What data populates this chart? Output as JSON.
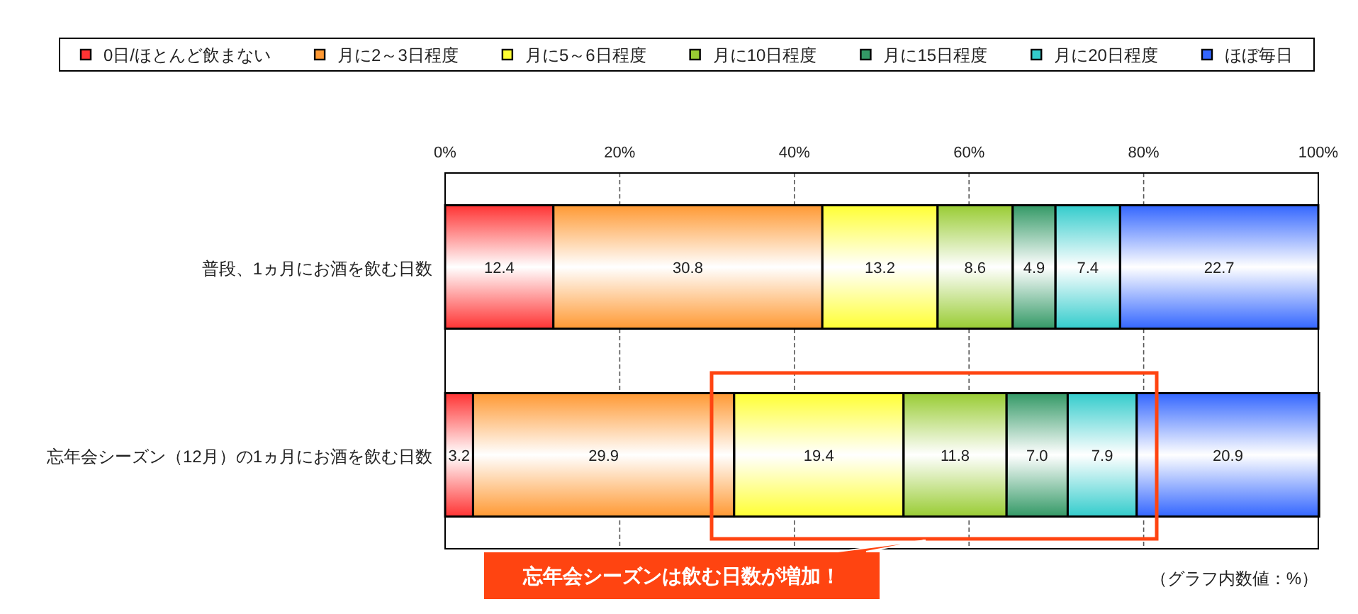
{
  "chart_data": {
    "type": "bar",
    "orientation": "horizontal",
    "stacked": true,
    "categories": [
      "普段、1ヵ月にお酒を飲む日数",
      "忘年会シーズン（12月）の1ヵ月にお酒を飲む日数"
    ],
    "series": [
      {
        "name": "0日/ほとんど飲まない",
        "color": "#ff3333",
        "values": [
          12.4,
          3.2
        ],
        "value_labels": [
          "12.4",
          "3.2"
        ]
      },
      {
        "name": "月に2～3日程度",
        "color": "#ff9933",
        "values": [
          30.8,
          29.9
        ],
        "value_labels": [
          "30.8",
          "29.9"
        ]
      },
      {
        "name": "月に5～6日程度",
        "color": "#ffff33",
        "values": [
          13.2,
          19.4
        ],
        "value_labels": [
          "13.2",
          "19.4"
        ]
      },
      {
        "name": "月に10日程度",
        "color": "#99cc33",
        "values": [
          8.6,
          11.8
        ],
        "value_labels": [
          "8.6",
          "11.8"
        ]
      },
      {
        "name": "月に15日程度",
        "color": "#339966",
        "values": [
          4.9,
          7.0
        ],
        "value_labels": [
          "4.9",
          "7.0"
        ]
      },
      {
        "name": "月に20日程度",
        "color": "#33cccc",
        "values": [
          7.4,
          7.9
        ],
        "value_labels": [
          "7.4",
          "7.9"
        ]
      },
      {
        "name": "ほぼ毎日",
        "color": "#3366ff",
        "values": [
          22.7,
          20.9
        ],
        "value_labels": [
          "22.7",
          "20.9"
        ]
      }
    ],
    "xlim": [
      0,
      100
    ],
    "xticks": [
      {
        "value": 0,
        "label": "0%"
      },
      {
        "value": 20,
        "label": "20%"
      },
      {
        "value": 40,
        "label": "40%"
      },
      {
        "value": 60,
        "label": "60%"
      },
      {
        "value": 80,
        "label": "80%"
      },
      {
        "value": 100,
        "label": "100%"
      }
    ],
    "grid": "x",
    "legend": "top",
    "annotations": [
      "忘年会シーズンは飲む日数が増加！",
      "（グラフ内数値：%）"
    ]
  }
}
